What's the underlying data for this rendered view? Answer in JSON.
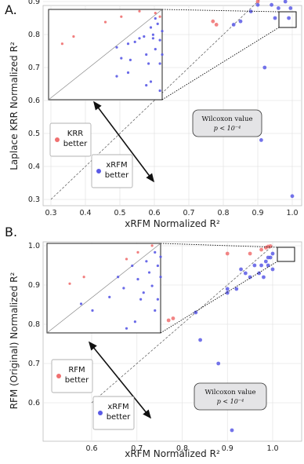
{
  "colors": {
    "red": "#f07070",
    "blue": "#5a5ae6",
    "grid": "#e6e6e6",
    "box_fill": "#e4e4e6"
  },
  "chart_data": [
    {
      "panel": "A.",
      "type": "scatter",
      "xlabel": "xRFM Normalized R²",
      "ylabel": "Laplace KRR Normalized R²",
      "xlim": [
        0.28,
        1.02
      ],
      "ylim": [
        0.28,
        1.02
      ],
      "xticks": [
        "0.3",
        "0.4",
        "0.5",
        "0.6",
        "0.7",
        "0.8",
        "0.9",
        "1.0"
      ],
      "yticks": [
        "0.3",
        "0.4",
        "0.5",
        "0.6",
        "0.7",
        "0.8",
        "0.9",
        "1.0"
      ],
      "legend": {
        "top": "KRR better",
        "bottom": "xRFM better"
      },
      "wilcoxon": {
        "title": "Wilcoxon value",
        "value": "p < 10⁻⁴"
      },
      "inset_range": [
        0.95,
        1.0
      ],
      "series": [
        {
          "name": "KRR better",
          "color": "red",
          "points": [
            [
              0.77,
              0.84
            ],
            [
              0.78,
              0.83
            ],
            [
              0.9,
              0.9
            ],
            [
              0.905,
              0.955
            ],
            [
              0.905,
              0.91
            ],
            [
              0.96,
              0.97
            ],
            [
              0.975,
              0.985
            ],
            [
              0.982,
              0.99
            ],
            [
              0.99,
              0.995
            ],
            [
              0.995,
              0.998
            ]
          ]
        },
        {
          "name": "xRFM better",
          "color": "blue",
          "points": [
            [
              0.83,
              0.83
            ],
            [
              0.85,
              0.84
            ],
            [
              0.88,
              0.87
            ],
            [
              0.9,
              0.89
            ],
            [
              0.91,
              0.48
            ],
            [
              0.92,
              0.7
            ],
            [
              0.93,
              0.93
            ],
            [
              0.94,
              0.89
            ],
            [
              0.95,
              0.85
            ],
            [
              0.96,
              0.88
            ],
            [
              0.97,
              0.94
            ],
            [
              0.98,
              0.9
            ],
            [
              0.99,
              0.85
            ],
            [
              1.0,
              0.31
            ],
            [
              0.985,
              0.95
            ],
            [
              0.99,
              0.92
            ],
            [
              0.995,
              0.96
            ],
            [
              1.0,
              0.98
            ],
            [
              0.97,
              0.96
            ],
            [
              0.98,
              0.97
            ],
            [
              0.995,
              0.97
            ],
            [
              1.0,
              0.99
            ],
            [
              0.99,
              0.98
            ],
            [
              0.975,
              0.93
            ],
            [
              1.0,
              0.93
            ],
            [
              0.995,
              0.88
            ]
          ]
        }
      ],
      "inset_points": {
        "red": [
          [
            0.956,
            0.981
          ],
          [
            0.961,
            0.985
          ],
          [
            0.975,
            0.993
          ],
          [
            0.982,
            0.996
          ],
          [
            0.99,
            0.999
          ],
          [
            0.997,
            0.998
          ],
          [
            0.999,
            0.996
          ]
        ],
        "blue": [
          [
            0.98,
            0.979
          ],
          [
            0.982,
            0.973
          ],
          [
            0.985,
            0.981
          ],
          [
            0.986,
            0.972
          ],
          [
            0.988,
            0.982
          ],
          [
            0.99,
            0.984
          ],
          [
            0.992,
            0.985
          ],
          [
            0.993,
            0.975
          ],
          [
            0.994,
            0.97
          ],
          [
            0.995,
            0.99
          ],
          [
            0.996,
            0.986
          ],
          [
            0.997,
            0.978
          ],
          [
            0.998,
            0.992
          ],
          [
            0.999,
            0.983
          ],
          [
            1.0,
            0.988
          ],
          [
            0.997,
            0.995
          ],
          [
            0.995,
            0.96
          ],
          [
            0.993,
            0.958
          ],
          [
            0.999,
            0.97
          ],
          [
            0.985,
            0.965
          ],
          [
            0.98,
            0.963
          ],
          [
            0.999,
            0.955
          ],
          [
            1.0,
            0.975
          ],
          [
            0.996,
            0.984
          ]
        ]
      }
    },
    {
      "panel": "B.",
      "type": "scatter",
      "xlabel": "xRFM Normalized R²",
      "ylabel": "RFM (Original) Normalized R²",
      "xlim": [
        0.52,
        1.01
      ],
      "ylim": [
        0.51,
        1.01
      ],
      "xticks": [
        "0.6",
        "0.7",
        "0.8",
        "0.9",
        "1.0"
      ],
      "yticks": [
        "0.6",
        "0.7",
        "0.8",
        "0.9",
        "1.0"
      ],
      "legend": {
        "top": "RFM better",
        "bottom": "xRFM better"
      },
      "wilcoxon": {
        "title": "Wilcoxon value",
        "value": "p < 10⁻⁴"
      },
      "inset_range": [
        0.96,
        1.0
      ],
      "series": [
        {
          "name": "RFM better",
          "color": "red",
          "points": [
            [
              0.77,
              0.81
            ],
            [
              0.78,
              0.815
            ],
            [
              0.9,
              0.98
            ],
            [
              0.95,
              0.98
            ],
            [
              0.975,
              0.99
            ],
            [
              0.985,
              0.995
            ],
            [
              0.99,
              0.998
            ],
            [
              0.995,
              0.999
            ]
          ]
        },
        {
          "name": "xRFM better",
          "color": "blue",
          "points": [
            [
              0.83,
              0.83
            ],
            [
              0.84,
              0.76
            ],
            [
              0.88,
              0.7
            ],
            [
              0.9,
              0.89
            ],
            [
              0.91,
              0.53
            ],
            [
              0.9,
              0.88
            ],
            [
              0.92,
              0.89
            ],
            [
              0.93,
              0.94
            ],
            [
              0.94,
              0.93
            ],
            [
              0.95,
              0.92
            ],
            [
              0.96,
              0.95
            ],
            [
              0.97,
              0.93
            ],
            [
              0.98,
              0.92
            ],
            [
              0.99,
              0.95
            ],
            [
              1.0,
              0.94
            ],
            [
              0.995,
              0.97
            ],
            [
              1.0,
              0.98
            ],
            [
              0.985,
              0.96
            ],
            [
              0.99,
              0.97
            ],
            [
              0.975,
              0.95
            ]
          ]
        }
      ],
      "inset_points": {
        "red": [
          [
            0.968,
            0.982
          ],
          [
            0.973,
            0.985
          ],
          [
            0.988,
            0.993
          ],
          [
            0.992,
            0.996
          ],
          [
            0.997,
            0.999
          ]
        ],
        "blue": [
          [
            0.972,
            0.973
          ],
          [
            0.976,
            0.97
          ],
          [
            0.982,
            0.976
          ],
          [
            0.985,
            0.985
          ],
          [
            0.987,
            0.98
          ],
          [
            0.99,
            0.99
          ],
          [
            0.992,
            0.984
          ],
          [
            0.993,
            0.975
          ],
          [
            0.995,
            0.992
          ],
          [
            0.996,
            0.987
          ],
          [
            0.997,
            0.981
          ],
          [
            0.998,
            0.996
          ],
          [
            0.999,
            0.99
          ],
          [
            1.0,
            0.994
          ],
          [
            0.994,
            0.978
          ],
          [
            0.991,
            0.965
          ],
          [
            0.998,
            0.97
          ],
          [
            0.999,
            0.975
          ],
          [
            0.988,
            0.962
          ],
          [
            1.0,
            0.985
          ]
        ]
      }
    }
  ]
}
